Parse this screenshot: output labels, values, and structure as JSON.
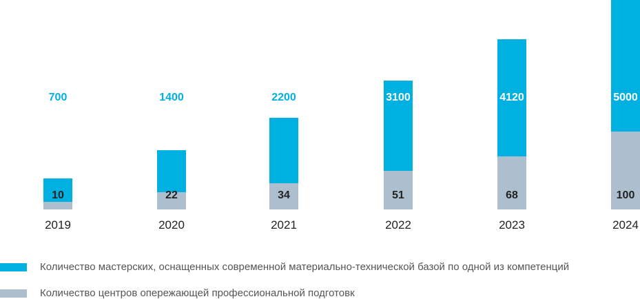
{
  "chart_data": {
    "type": "bar",
    "stacked": true,
    "categories": [
      "2019",
      "2020",
      "2021",
      "2022",
      "2023",
      "2024"
    ],
    "series": [
      {
        "name": "Количество мастерских, оснащенных современной материально-технической базой по одной из компетенций",
        "values": [
          700,
          1400,
          2200,
          3100,
          4120,
          5000
        ],
        "color": "#00b0e0"
      },
      {
        "name": "Количество центров опережающей профессиональной подготовк",
        "values": [
          10,
          22,
          34,
          51,
          68,
          100
        ],
        "color": "#adbfcf"
      }
    ],
    "grid": false,
    "legend_position": "bottom-left"
  }
}
